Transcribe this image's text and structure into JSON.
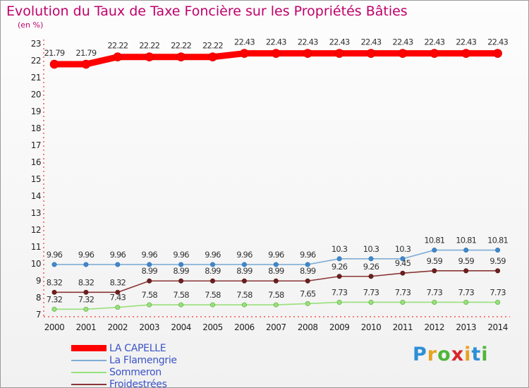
{
  "chart_data": {
    "type": "line",
    "title": "Evolution du Taux de Taxe Foncière sur les Propriétés Bâties",
    "unit_label": "(en %)",
    "x": [
      "2000",
      "2001",
      "2002",
      "2003",
      "2004",
      "2005",
      "2006",
      "2007",
      "2008",
      "2009",
      "2010",
      "2011",
      "2012",
      "2013",
      "2014"
    ],
    "ylim": [
      7,
      23
    ],
    "yticks": [
      7,
      8,
      9,
      10,
      11,
      12,
      13,
      14,
      15,
      16,
      17,
      18,
      19,
      20,
      21,
      22,
      23
    ],
    "grid": false,
    "legend_position": "bottom-left",
    "series": [
      {
        "name": "LA CAPELLE",
        "color": "#ff0000",
        "values": [
          21.79,
          21.79,
          22.22,
          22.22,
          22.22,
          22.22,
          22.43,
          22.43,
          22.43,
          22.43,
          22.43,
          22.43,
          22.43,
          22.43,
          22.43
        ],
        "labels": [
          "21.79",
          "21.79",
          "22.22",
          "22.22",
          "22.22",
          "22.22",
          "22.43",
          "22.43",
          "22.43",
          "22.43",
          "22.43",
          "22.43",
          "22.43",
          "22.43",
          "22.43"
        ]
      },
      {
        "name": "La Flamengrie",
        "color": "#7faed6",
        "values": [
          9.96,
          9.96,
          9.96,
          9.96,
          9.96,
          9.96,
          9.96,
          9.96,
          9.96,
          10.3,
          10.3,
          10.3,
          10.81,
          10.81,
          10.81
        ],
        "labels": [
          "9.96",
          "9.96",
          "9.96",
          "9.96",
          "9.96",
          "9.96",
          "9.96",
          "9.96",
          "9.96",
          "10.3",
          "10.3",
          "10.3",
          "10.81",
          "10.81",
          "10.81"
        ]
      },
      {
        "name": "Sommeron",
        "color": "#98e07a",
        "values": [
          7.32,
          7.32,
          7.43,
          7.58,
          7.58,
          7.58,
          7.58,
          7.58,
          7.65,
          7.73,
          7.73,
          7.73,
          7.73,
          7.73,
          7.73
        ],
        "labels": [
          "7.32",
          "7.32",
          "7.43",
          "7.58",
          "7.58",
          "7.58",
          "7.58",
          "7.58",
          "7.65",
          "7.73",
          "7.73",
          "7.73",
          "7.73",
          "7.73",
          "7.73"
        ]
      },
      {
        "name": "Froidestrées",
        "color": "#8a3535",
        "values": [
          8.32,
          8.32,
          8.32,
          8.99,
          8.99,
          8.99,
          8.99,
          8.99,
          8.99,
          9.26,
          9.26,
          9.45,
          9.59,
          9.59,
          9.59
        ],
        "labels": [
          "8.32",
          "8.32",
          "8.32",
          "8.99",
          "8.99",
          "8.99",
          "8.99",
          "8.99",
          "8.99",
          "9.26",
          "9.26",
          "9.45",
          "9.59",
          "9.59",
          "9.59"
        ]
      }
    ]
  },
  "logo": {
    "text": "Proxiti",
    "letter_colors": [
      "#2e8fd6",
      "#e8a21e",
      "#4fb53a",
      "#d8262b",
      "#e8a21e",
      "#2e8fd6",
      "#4fb53a"
    ]
  }
}
